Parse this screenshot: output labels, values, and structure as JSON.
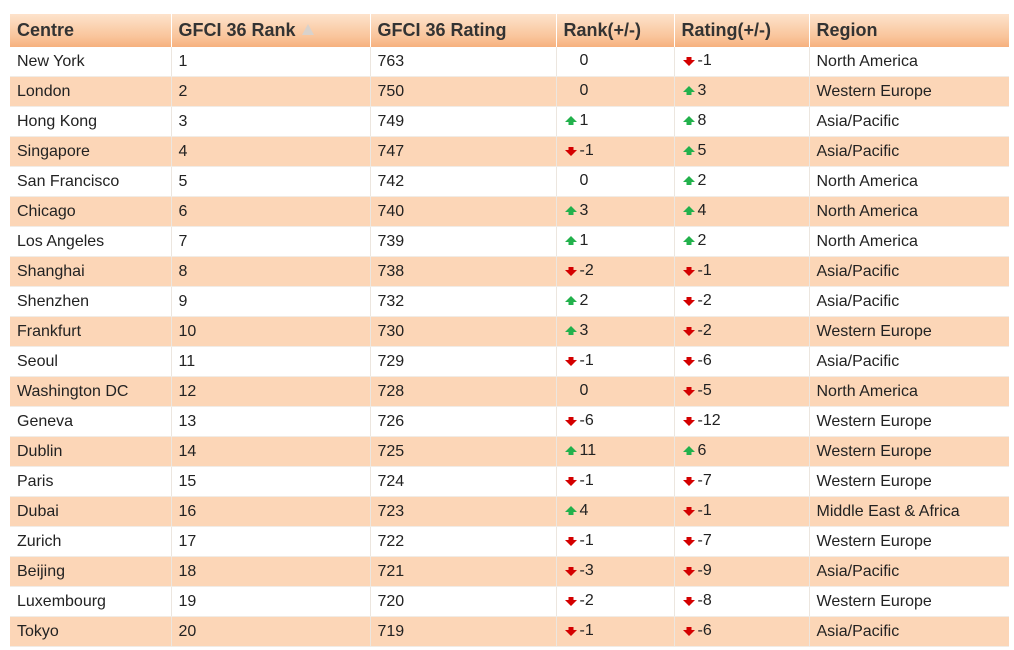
{
  "table": {
    "headers": {
      "centre": "Centre",
      "rank": "GFCI 36 Rank",
      "rating": "GFCI 36 Rating",
      "rank_change": "Rank(+/-)",
      "rating_change": "Rating(+/-)",
      "region": "Region"
    },
    "sort_indicator": "sort-ascending-icon",
    "colors": {
      "up": "#22b14c",
      "down": "#d40000",
      "header": "#f9c49a",
      "stripe": "#fcd6b7"
    },
    "rows": [
      {
        "centre": "New York",
        "rank": "1",
        "rating": "763",
        "rank_dir": "none",
        "rank_change": "0",
        "rating_dir": "down",
        "rating_change": "-1",
        "region": "North America"
      },
      {
        "centre": "London",
        "rank": "2",
        "rating": "750",
        "rank_dir": "none",
        "rank_change": "0",
        "rating_dir": "up",
        "rating_change": "3",
        "region": "Western Europe"
      },
      {
        "centre": "Hong Kong",
        "rank": "3",
        "rating": "749",
        "rank_dir": "up",
        "rank_change": "1",
        "rating_dir": "up",
        "rating_change": "8",
        "region": "Asia/Pacific"
      },
      {
        "centre": "Singapore",
        "rank": "4",
        "rating": "747",
        "rank_dir": "down",
        "rank_change": "-1",
        "rating_dir": "up",
        "rating_change": "5",
        "region": "Asia/Pacific"
      },
      {
        "centre": "San Francisco",
        "rank": "5",
        "rating": "742",
        "rank_dir": "none",
        "rank_change": "0",
        "rating_dir": "up",
        "rating_change": "2",
        "region": "North America"
      },
      {
        "centre": "Chicago",
        "rank": "6",
        "rating": "740",
        "rank_dir": "up",
        "rank_change": "3",
        "rating_dir": "up",
        "rating_change": "4",
        "region": "North America"
      },
      {
        "centre": "Los Angeles",
        "rank": "7",
        "rating": "739",
        "rank_dir": "up",
        "rank_change": "1",
        "rating_dir": "up",
        "rating_change": "2",
        "region": "North America"
      },
      {
        "centre": "Shanghai",
        "rank": "8",
        "rating": "738",
        "rank_dir": "down",
        "rank_change": "-2",
        "rating_dir": "down",
        "rating_change": "-1",
        "region": "Asia/Pacific"
      },
      {
        "centre": "Shenzhen",
        "rank": "9",
        "rating": "732",
        "rank_dir": "up",
        "rank_change": "2",
        "rating_dir": "down",
        "rating_change": "-2",
        "region": "Asia/Pacific"
      },
      {
        "centre": "Frankfurt",
        "rank": "10",
        "rating": "730",
        "rank_dir": "up",
        "rank_change": "3",
        "rating_dir": "down",
        "rating_change": "-2",
        "region": "Western Europe"
      },
      {
        "centre": "Seoul",
        "rank": "11",
        "rating": "729",
        "rank_dir": "down",
        "rank_change": "-1",
        "rating_dir": "down",
        "rating_change": "-6",
        "region": "Asia/Pacific"
      },
      {
        "centre": "Washington DC",
        "rank": "12",
        "rating": "728",
        "rank_dir": "none",
        "rank_change": "0",
        "rating_dir": "down",
        "rating_change": "-5",
        "region": "North America"
      },
      {
        "centre": "Geneva",
        "rank": "13",
        "rating": "726",
        "rank_dir": "down",
        "rank_change": "-6",
        "rating_dir": "down",
        "rating_change": "-12",
        "region": "Western Europe"
      },
      {
        "centre": "Dublin",
        "rank": "14",
        "rating": "725",
        "rank_dir": "up",
        "rank_change": "11",
        "rating_dir": "up",
        "rating_change": "6",
        "region": "Western Europe"
      },
      {
        "centre": "Paris",
        "rank": "15",
        "rating": "724",
        "rank_dir": "down",
        "rank_change": "-1",
        "rating_dir": "down",
        "rating_change": "-7",
        "region": "Western Europe"
      },
      {
        "centre": "Dubai",
        "rank": "16",
        "rating": "723",
        "rank_dir": "up",
        "rank_change": "4",
        "rating_dir": "down",
        "rating_change": "-1",
        "region": "Middle East & Africa"
      },
      {
        "centre": "Zurich",
        "rank": "17",
        "rating": "722",
        "rank_dir": "down",
        "rank_change": "-1",
        "rating_dir": "down",
        "rating_change": "-7",
        "region": "Western Europe"
      },
      {
        "centre": "Beijing",
        "rank": "18",
        "rating": "721",
        "rank_dir": "down",
        "rank_change": "-3",
        "rating_dir": "down",
        "rating_change": "-9",
        "region": "Asia/Pacific"
      },
      {
        "centre": "Luxembourg",
        "rank": "19",
        "rating": "720",
        "rank_dir": "down",
        "rank_change": "-2",
        "rating_dir": "down",
        "rating_change": "-8",
        "region": "Western Europe"
      },
      {
        "centre": "Tokyo",
        "rank": "20",
        "rating": "719",
        "rank_dir": "down",
        "rank_change": "-1",
        "rating_dir": "down",
        "rating_change": "-6",
        "region": "Asia/Pacific"
      }
    ]
  }
}
